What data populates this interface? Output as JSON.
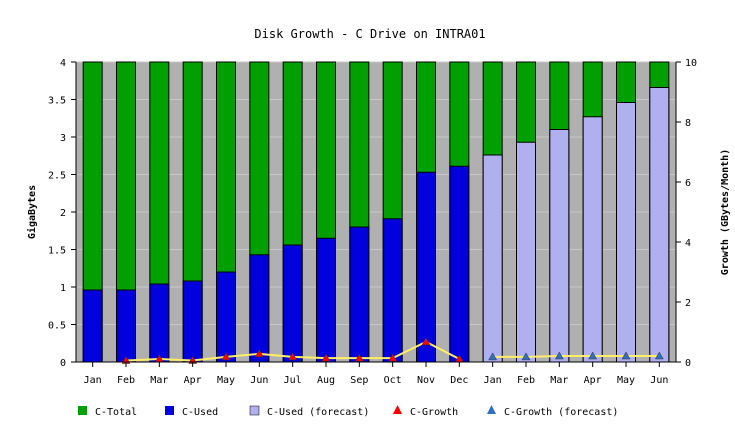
{
  "chart_data": {
    "type": "bar",
    "title": "Disk Growth - C Drive on INTRA01",
    "ylabel": "GigaBytes",
    "y2label": "Growth (GBytes/Month)",
    "ylim": [
      0,
      4
    ],
    "y2lim": [
      0,
      10
    ],
    "yticks": [
      "0",
      "0.5",
      "1",
      "1.5",
      "2",
      "2.5",
      "3",
      "3.5",
      "4"
    ],
    "y2ticks": [
      "0",
      "2",
      "4",
      "6",
      "8",
      "10"
    ],
    "categories": [
      "Jan",
      "Feb",
      "Mar",
      "Apr",
      "May",
      "Jun",
      "Jul",
      "Aug",
      "Sep",
      "Oct",
      "Nov",
      "Dec",
      "Jan",
      "Feb",
      "Mar",
      "Apr",
      "May",
      "Jun"
    ],
    "series": [
      {
        "name": "C-Total",
        "kind": "bar",
        "color": "#00a000",
        "values": [
          4,
          4,
          4,
          4,
          4,
          4,
          4,
          4,
          4,
          4,
          4,
          4,
          4,
          4,
          4,
          4,
          4,
          4
        ]
      },
      {
        "name": "C-Used",
        "kind": "bar",
        "color": "#0000dd",
        "values": [
          0.96,
          0.96,
          1.04,
          1.08,
          1.2,
          1.43,
          1.56,
          1.65,
          1.8,
          1.91,
          2.53,
          2.61,
          null,
          null,
          null,
          null,
          null,
          null
        ]
      },
      {
        "name": "C-Used (forecast)",
        "kind": "bar",
        "color": "#b0b0f0",
        "values": [
          null,
          null,
          null,
          null,
          null,
          null,
          null,
          null,
          null,
          null,
          null,
          null,
          2.76,
          2.93,
          3.1,
          3.27,
          3.46,
          3.66
        ]
      },
      {
        "name": "C-Growth",
        "kind": "line",
        "axis": "right",
        "color": "#ff0000",
        "line_color": "#ffee66",
        "values": [
          null,
          0.05,
          0.1,
          0.05,
          0.17,
          0.27,
          0.17,
          0.13,
          0.13,
          0.13,
          0.67,
          0.1,
          null,
          null,
          null,
          null,
          null,
          null
        ]
      },
      {
        "name": "C-Growth (forecast)",
        "kind": "line",
        "axis": "right",
        "color": "#3070c0",
        "line_color": "#ffee66",
        "values": [
          null,
          null,
          null,
          null,
          null,
          null,
          null,
          null,
          null,
          null,
          null,
          null,
          0.17,
          0.17,
          0.2,
          0.2,
          0.2,
          0.2
        ]
      }
    ],
    "grid": true,
    "plot_background": "#b0b0b0",
    "legend_position": "bottom"
  }
}
